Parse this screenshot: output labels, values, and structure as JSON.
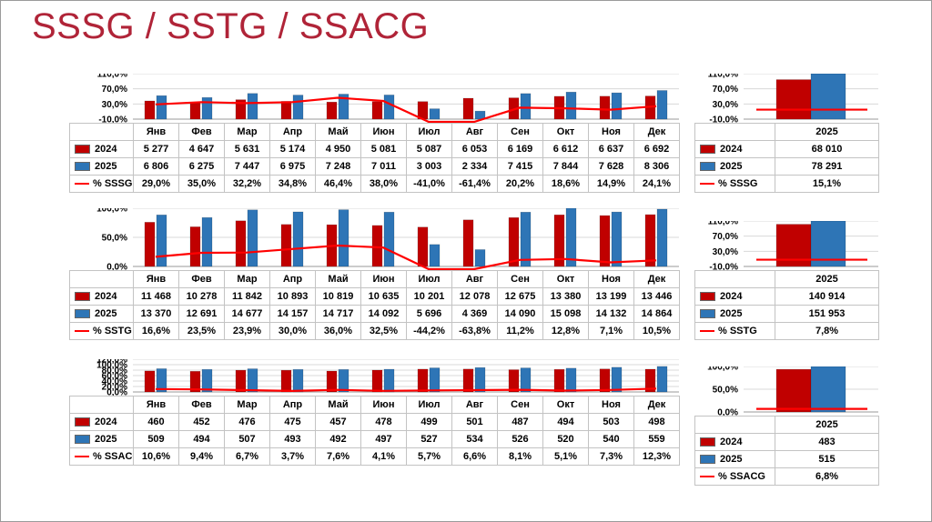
{
  "slide": {
    "title": "SSSG / SSTG / SSACG"
  },
  "colors": {
    "title": "#b02438",
    "bar2024": "#c00000",
    "bar2025": "#2e75b6",
    "line": "#ff0000",
    "grid": "#d8d8d8",
    "axis": "#9a9a9a",
    "table_border": "#c3c3c3"
  },
  "months": [
    "Янв",
    "Фев",
    "Мар",
    "Апр",
    "Май",
    "Июн",
    "Июл",
    "Авг",
    "Сен",
    "Окт",
    "Ноя",
    "Дек"
  ],
  "chart_data": [
    {
      "type": "bar",
      "name": "SSSG",
      "categories": [
        "Янв",
        "Фев",
        "Мар",
        "Апр",
        "Май",
        "Июн",
        "Июл",
        "Авг",
        "Сен",
        "Окт",
        "Ноя",
        "Дек"
      ],
      "series": [
        {
          "name": "2024",
          "type": "bar",
          "color": "#c00000",
          "values": [
            5277,
            4647,
            5631,
            5174,
            4950,
            5081,
            5087,
            6053,
            6169,
            6612,
            6637,
            6692
          ]
        },
        {
          "name": "2025",
          "type": "bar",
          "color": "#2e75b6",
          "values": [
            6806,
            6275,
            7447,
            6975,
            7248,
            7011,
            3003,
            2334,
            7415,
            7844,
            7628,
            8306
          ]
        },
        {
          "name": "% SSSG",
          "type": "line",
          "color": "#ff0000",
          "values": [
            29.0,
            35.0,
            32.2,
            34.8,
            46.4,
            38.0,
            -41.0,
            -61.4,
            20.2,
            18.6,
            14.9,
            24.1
          ]
        }
      ],
      "percent_axis": {
        "min": -10,
        "max": 110,
        "ticks": [
          110,
          70,
          30,
          -10
        ]
      },
      "grid": true,
      "summary": {
        "category": "2025",
        "value_2024": 68010,
        "value_2025": 78291,
        "pct": 15.1,
        "pct_label": "% SSSG",
        "percent_axis": {
          "min": -10,
          "max": 110,
          "ticks": [
            110,
            70,
            30,
            -10
          ]
        }
      }
    },
    {
      "type": "bar",
      "name": "SSTG",
      "categories": [
        "Янв",
        "Фев",
        "Мар",
        "Апр",
        "Май",
        "Июн",
        "Июл",
        "Авг",
        "Сен",
        "Окт",
        "Ноя",
        "Дек"
      ],
      "series": [
        {
          "name": "2024",
          "type": "bar",
          "color": "#c00000",
          "values": [
            11468,
            10278,
            11842,
            10893,
            10819,
            10635,
            10201,
            12078,
            12675,
            13380,
            13199,
            13446
          ]
        },
        {
          "name": "2025",
          "type": "bar",
          "color": "#2e75b6",
          "values": [
            13370,
            12691,
            14677,
            14157,
            14717,
            14092,
            5696,
            4369,
            14090,
            15098,
            14132,
            14864
          ]
        },
        {
          "name": "% SSTG",
          "type": "line",
          "color": "#ff0000",
          "values": [
            16.6,
            23.5,
            23.9,
            30.0,
            36.0,
            32.5,
            -44.2,
            -63.8,
            11.2,
            12.8,
            7.1,
            10.5
          ]
        }
      ],
      "percent_axis": {
        "min": 0,
        "max": 100,
        "ticks": [
          100,
          50,
          0
        ]
      },
      "grid": true,
      "summary": {
        "category": "2025",
        "value_2024": 140914,
        "value_2025": 151953,
        "pct": 7.8,
        "pct_label": "% SSTG",
        "percent_axis": {
          "min": -10,
          "max": 110,
          "ticks": [
            110,
            70,
            30,
            -10
          ]
        }
      }
    },
    {
      "type": "bar",
      "name": "SSACG",
      "categories": [
        "Янв",
        "Фев",
        "Мар",
        "Апр",
        "Май",
        "Июн",
        "Июл",
        "Авг",
        "Сен",
        "Окт",
        "Ноя",
        "Дек"
      ],
      "series": [
        {
          "name": "2024",
          "type": "bar",
          "color": "#c00000",
          "values": [
            460,
            452,
            476,
            475,
            457,
            478,
            499,
            501,
            487,
            494,
            503,
            498
          ]
        },
        {
          "name": "2025",
          "type": "bar",
          "color": "#2e75b6",
          "values": [
            509,
            494,
            507,
            493,
            492,
            497,
            527,
            534,
            526,
            520,
            540,
            559
          ]
        },
        {
          "name": "% SSACG",
          "type": "line",
          "color": "#ff0000",
          "values": [
            10.6,
            9.4,
            6.7,
            3.7,
            7.6,
            4.1,
            5.7,
            6.6,
            8.1,
            5.1,
            7.3,
            12.3
          ]
        }
      ],
      "percent_axis": {
        "min": 0,
        "max": 120,
        "ticks": [
          120,
          100,
          80,
          60,
          40,
          20,
          0
        ]
      },
      "grid": true,
      "summary": {
        "category": "2025",
        "value_2024": 483,
        "value_2025": 515,
        "pct": 6.8,
        "pct_label": "% SSACG",
        "percent_axis": {
          "min": 0,
          "max": 100,
          "ticks": [
            100,
            50,
            0
          ]
        }
      }
    }
  ]
}
